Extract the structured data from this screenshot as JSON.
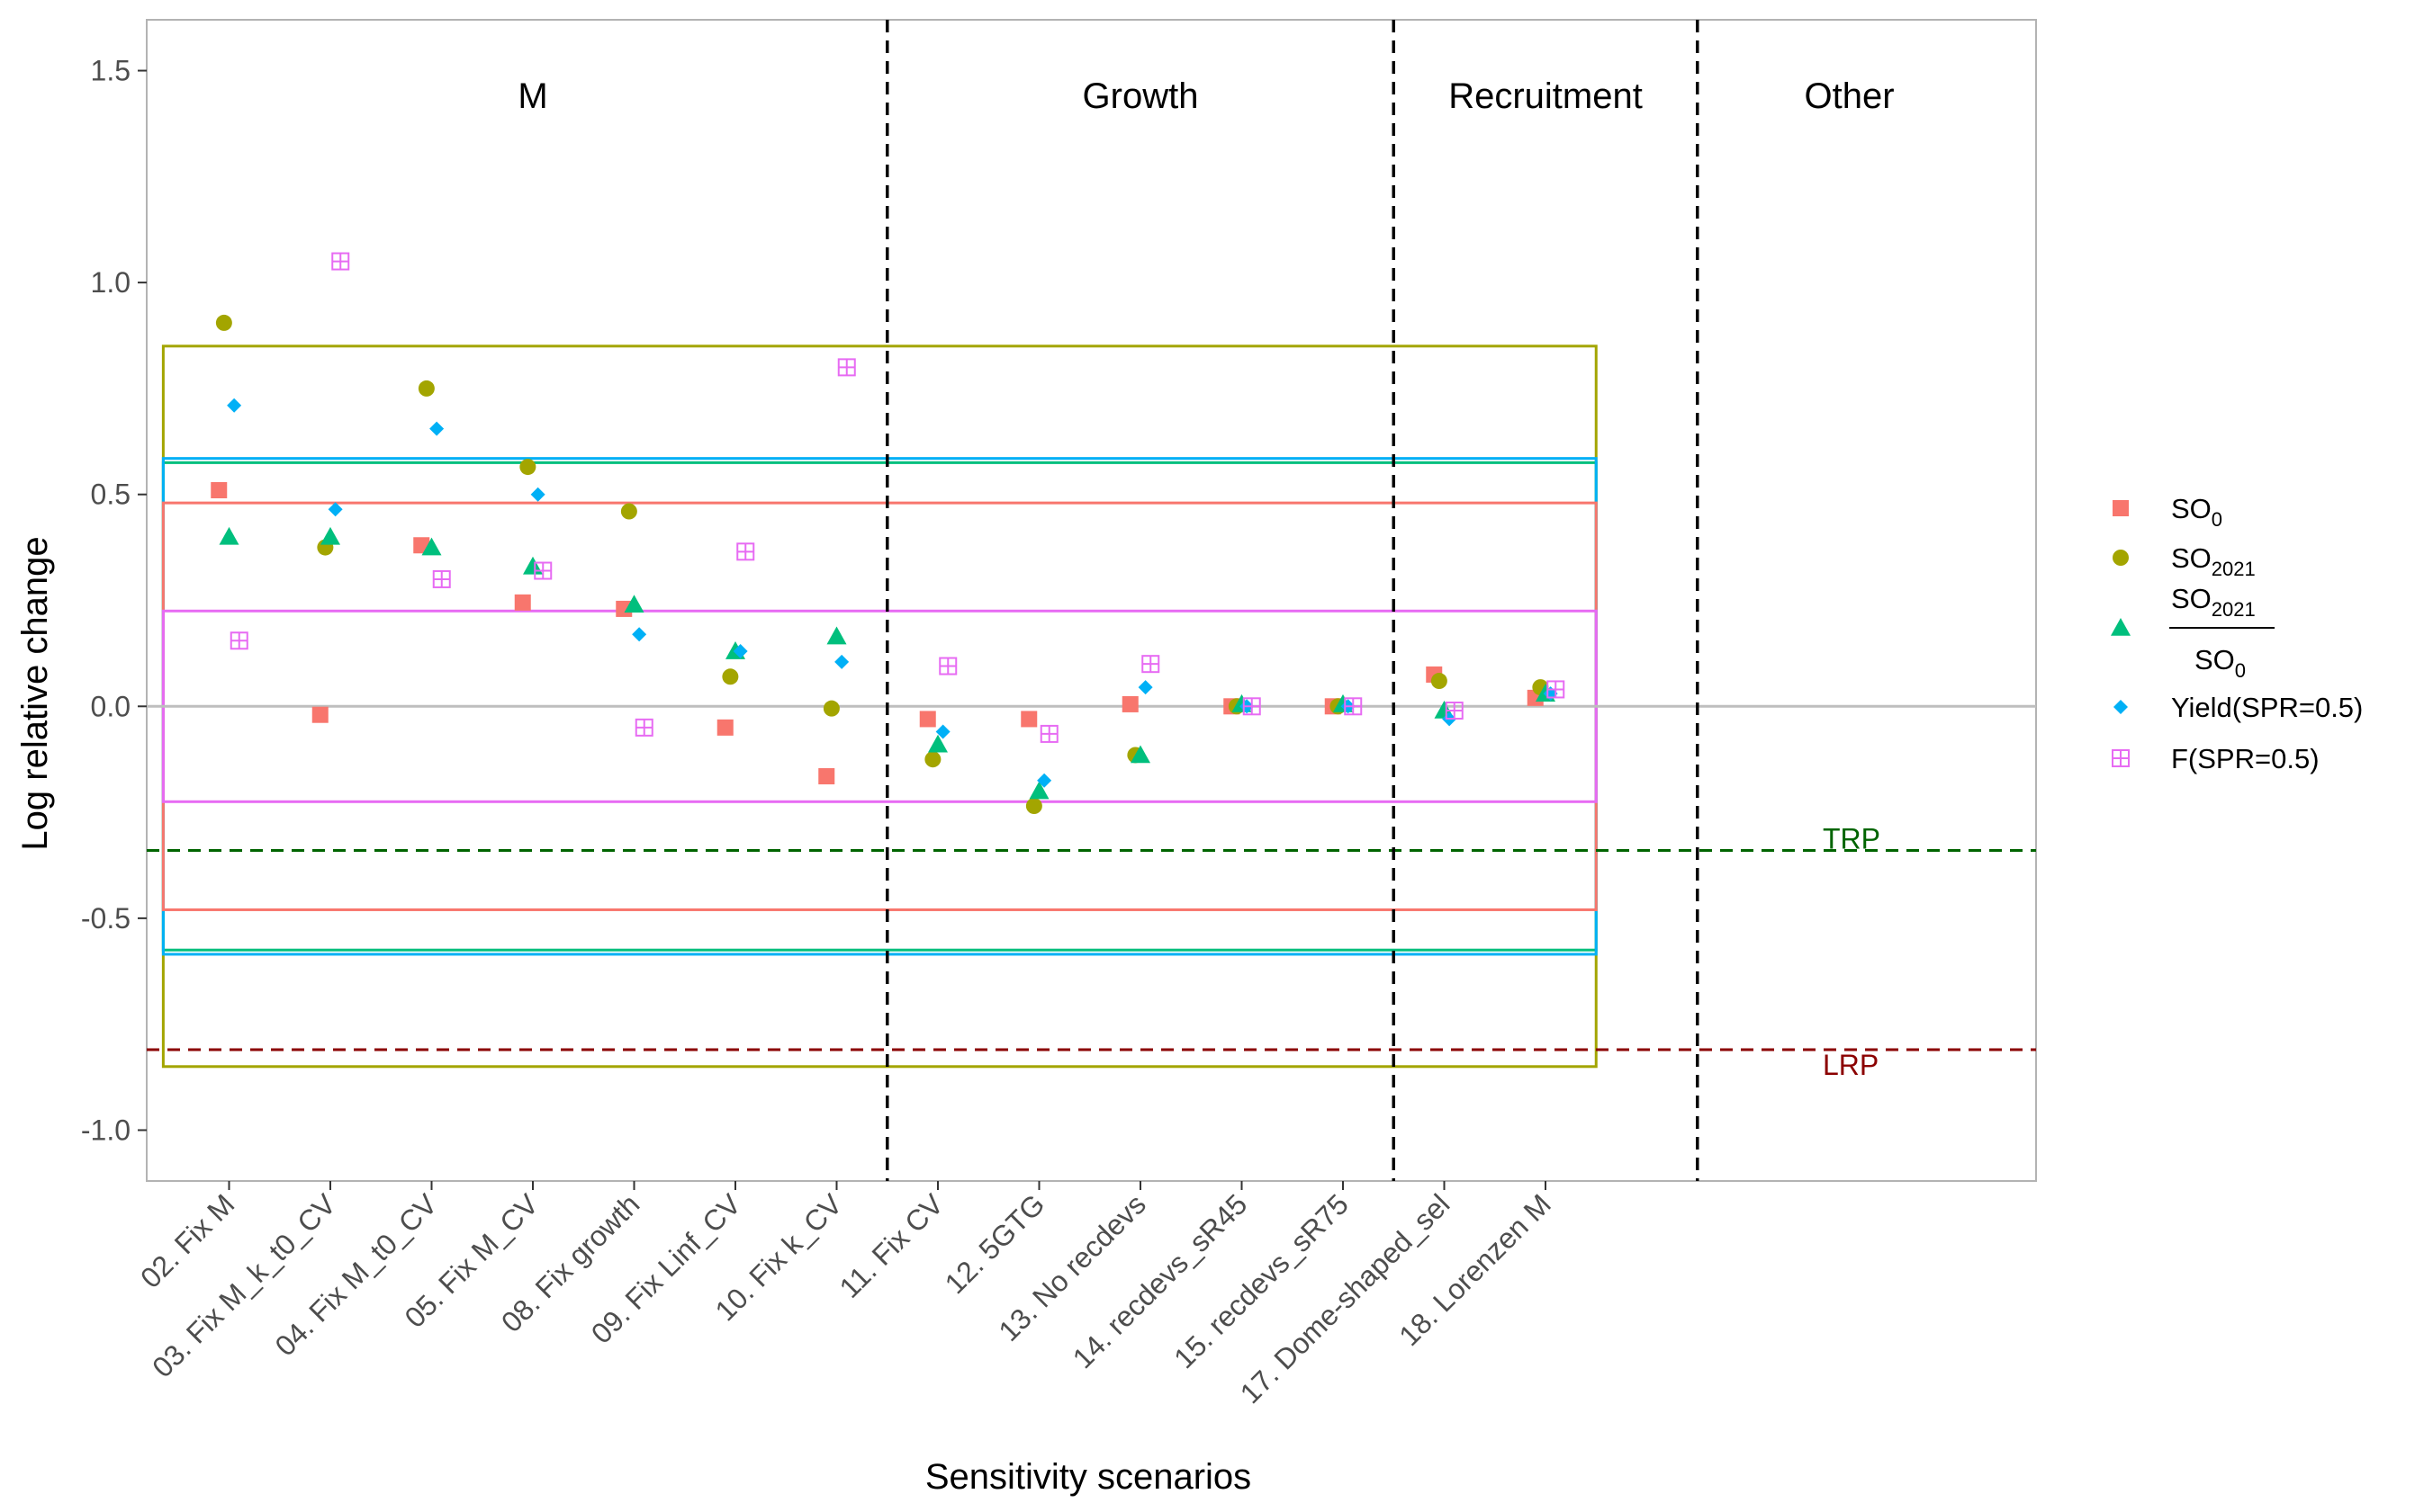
{
  "chart_data": {
    "type": "scatter",
    "xlabel": "Sensitivity scenarios",
    "ylabel": "Log relative change",
    "ylim": [
      -1.12,
      1.62
    ],
    "yticks": [
      -1.0,
      -0.5,
      0.0,
      0.5,
      1.0,
      1.5
    ],
    "ytick_labels": [
      "-1.0",
      "-0.5",
      "0.0",
      "0.5",
      "1.0",
      "1.5"
    ],
    "categories": [
      "02. Fix M",
      "03. Fix M_k_t0_CV",
      "04. Fix M_t0_CV",
      "05. Fix M_CV",
      "08. Fix growth",
      "09. Fix Linf_CV",
      "10. Fix k_CV",
      "11. Fix CV",
      "12. 5GTG",
      "13. No recdevs",
      "14. recdevs_sR45",
      "15. recdevs_sR75",
      "17. Dome-shaped_sel",
      "18. Lorenzen M"
    ],
    "group_labels": [
      "M",
      "Growth",
      "Recruitment",
      "Other"
    ],
    "groups": [
      {
        "label_index": 0,
        "center": 4.0
      },
      {
        "label_index": 1,
        "center": 10.0
      },
      {
        "label_index": 2,
        "center": 14.0
      },
      {
        "label_index": 3,
        "center": 17.0
      }
    ],
    "group_separators": [
      7.5,
      12.5,
      15.5
    ],
    "series": [
      {
        "name": "SO",
        "sub": "0",
        "shape": "square",
        "color": "#f8766d",
        "values": [
          0.51,
          -0.02,
          0.38,
          0.245,
          0.23,
          -0.05,
          -0.165,
          -0.03,
          -0.03,
          0.005,
          0.0,
          0.0,
          0.075,
          0.02
        ]
      },
      {
        "name": "SO",
        "sub": "2021",
        "shape": "circle",
        "color": "#a3a500",
        "values": [
          0.905,
          0.375,
          0.75,
          0.565,
          0.46,
          0.07,
          -0.005,
          -0.125,
          -0.235,
          -0.115,
          0.0,
          0.0,
          0.06,
          0.045
        ]
      },
      {
        "name": "SO",
        "sub": "2021",
        "denominator": "SO",
        "denominator_sub": "0",
        "shape": "triangle",
        "color": "#00bf7d",
        "values": [
          0.4,
          0.4,
          0.375,
          0.33,
          0.24,
          0.13,
          0.165,
          -0.09,
          -0.2,
          -0.115,
          0.005,
          0.005,
          -0.01,
          0.03
        ]
      },
      {
        "name": "Yield(SPR=0.5)",
        "shape": "diamond",
        "color": "#00b0f6",
        "values": [
          0.71,
          0.465,
          0.655,
          0.5,
          0.17,
          0.13,
          0.105,
          -0.06,
          -0.175,
          0.045,
          0.0,
          0.0,
          -0.03,
          0.03
        ]
      },
      {
        "name": "F(SPR=0.5)",
        "shape": "boxplus",
        "color": "#e76bf3",
        "values": [
          0.155,
          1.05,
          0.3,
          0.32,
          -0.05,
          0.365,
          0.8,
          0.095,
          -0.065,
          0.1,
          0.0,
          0.0,
          -0.01,
          0.04
        ]
      }
    ],
    "x_offsets": [
      -0.1,
      -0.05,
      0.0,
      0.05,
      0.1
    ],
    "reference_boxes": [
      {
        "color": "#a3a500",
        "x_range": [
          0.35,
          14.5
        ],
        "y_range": [
          -0.85,
          0.85
        ]
      },
      {
        "color": "#00bf7d",
        "x_range": [
          0.35,
          14.5
        ],
        "y_range": [
          -0.575,
          0.575
        ]
      },
      {
        "color": "#00b0f6",
        "x_range": [
          0.35,
          14.5
        ],
        "y_range": [
          -0.585,
          0.585
        ]
      },
      {
        "color": "#f8766d",
        "x_range": [
          0.35,
          14.5
        ],
        "y_range": [
          -0.48,
          0.48
        ]
      },
      {
        "color": "#e76bf3",
        "x_range": [
          0.35,
          14.5
        ],
        "y_range": [
          -0.225,
          0.225
        ]
      }
    ],
    "reference_lines": [
      {
        "label": "TRP",
        "y": -0.34,
        "color": "#006400"
      },
      {
        "label": "LRP",
        "y": -0.81,
        "color": "#8b0000"
      }
    ],
    "zero_line": {
      "y": 0.0,
      "color": "#bebebe"
    },
    "legend_position": "right",
    "grid": false
  }
}
